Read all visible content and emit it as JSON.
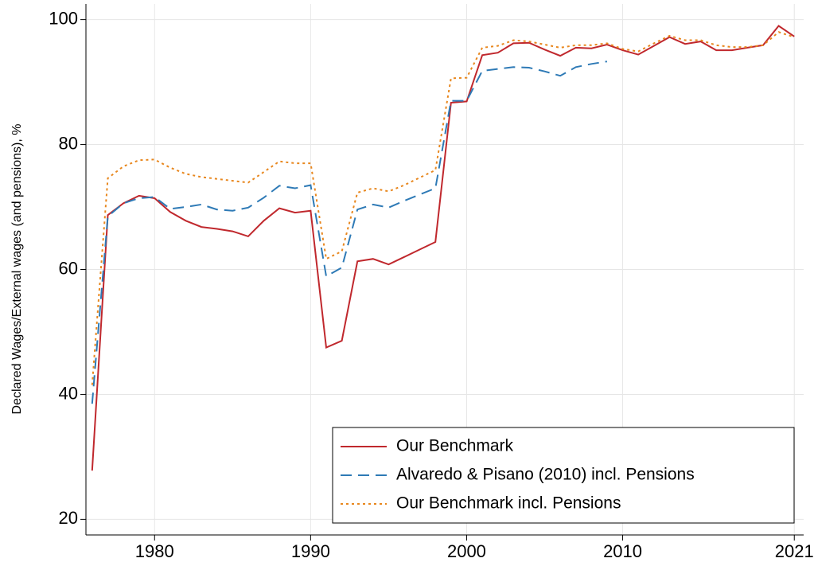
{
  "chart_data": {
    "type": "line",
    "y_label": "Declared Wages/External wages (and pensions), %",
    "x": [
      1976,
      1977,
      1978,
      1979,
      1980,
      1981,
      1982,
      1983,
      1984,
      1985,
      1986,
      1987,
      1988,
      1989,
      1990,
      1991,
      1992,
      1993,
      1994,
      1995,
      1996,
      1997,
      1998,
      1999,
      2000,
      2001,
      2002,
      2003,
      2004,
      2005,
      2006,
      2007,
      2008,
      2009,
      2010,
      2011,
      2012,
      2013,
      2014,
      2015,
      2016,
      2017,
      2018,
      2019,
      2020,
      2021
    ],
    "series": [
      {
        "name": "Our Benchmark",
        "color": "#c0282d",
        "dash": "solid",
        "values": [
          27.8,
          68.7,
          70.6,
          71.8,
          71.4,
          69.2,
          67.8,
          66.8,
          66.5,
          66.1,
          65.3,
          67.8,
          69.8,
          69.1,
          69.4,
          47.5,
          48.6,
          61.3,
          61.7,
          60.8,
          62,
          63.2,
          64.4,
          86.7,
          86.9,
          94.3,
          94.7,
          96.2,
          96.3,
          95.2,
          94.2,
          95.5,
          95.4,
          96,
          95.1,
          94.4,
          95.8,
          97.2,
          96.1,
          96.5,
          95.1,
          95.1,
          95.5,
          95.9,
          99,
          97.3
        ]
      },
      {
        "name": "Alvaredo & Pisano (2010) incl. Pensions",
        "color": "#2e7ab6",
        "dash": "dashed",
        "values": [
          38.5,
          68.5,
          70.6,
          71.4,
          71.6,
          69.7,
          70,
          70.4,
          69.6,
          69.4,
          69.9,
          71.5,
          73.4,
          73,
          73.5,
          58.9,
          60.3,
          69.6,
          70.4,
          69.9,
          71,
          72,
          73,
          87,
          87,
          91.8,
          92.1,
          92.4,
          92.3,
          91.7,
          91,
          92.4,
          92.9,
          93.3,
          null,
          null,
          null,
          null,
          null,
          null,
          null,
          null,
          null,
          null,
          null,
          null
        ]
      },
      {
        "name": "Our Benchmark incl. Pensions",
        "color": "#e8871e",
        "dash": "dotted",
        "values": [
          41.5,
          74.6,
          76.5,
          77.5,
          77.6,
          76.3,
          75.3,
          74.8,
          74.5,
          74.2,
          73.9,
          75.6,
          77.3,
          77,
          77,
          61.7,
          62.9,
          72.3,
          73,
          72.5,
          73.5,
          74.7,
          75.9,
          90.6,
          90.7,
          95.5,
          95.8,
          96.7,
          96.5,
          96,
          95.5,
          95.9,
          95.9,
          96.2,
          95.3,
          94.9,
          96.2,
          97.4,
          96.7,
          96.7,
          95.9,
          95.6,
          95.6,
          95.9,
          98,
          97.2
        ]
      }
    ],
    "xlim": [
      1975.6,
      2021.6
    ],
    "xticks": [
      1980,
      1990,
      2000,
      2010,
      2021
    ],
    "ylim": [
      17.5,
      102.5
    ],
    "yticks": [
      20,
      40,
      60,
      80,
      100
    ],
    "grid": true,
    "legend": "bottom-right"
  }
}
